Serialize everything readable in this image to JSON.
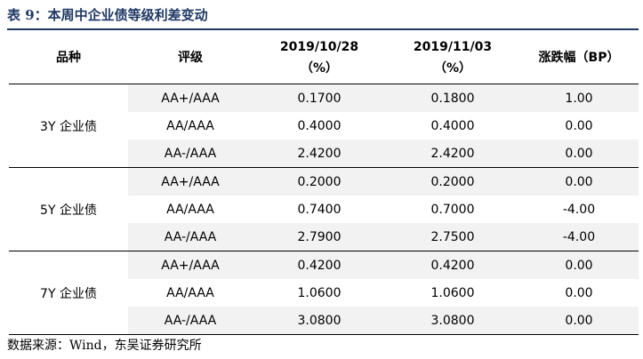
{
  "title": "表 9：本周中企业债等级利差变动",
  "table": {
    "headers": [
      {
        "line1": "品种",
        "line2": ""
      },
      {
        "line1": "评级",
        "line2": ""
      },
      {
        "line1": "2019/10/28",
        "line2": "（%）"
      },
      {
        "line1": "2019/11/03",
        "line2": "（%）"
      },
      {
        "line1": "涨跌幅（BP）",
        "line2": ""
      }
    ],
    "groups": [
      {
        "label": "3Y 企业债",
        "rows": [
          {
            "rating": "AA+/AAA",
            "v1": "0.1700",
            "v2": "0.1800",
            "change": "1.00"
          },
          {
            "rating": "AA/AAA",
            "v1": "0.4000",
            "v2": "0.4000",
            "change": "0.00"
          },
          {
            "rating": "AA-/AAA",
            "v1": "2.4200",
            "v2": "2.4200",
            "change": "0.00"
          }
        ]
      },
      {
        "label": "5Y 企业债",
        "rows": [
          {
            "rating": "AA+/AAA",
            "v1": "0.2000",
            "v2": "0.2000",
            "change": "0.00"
          },
          {
            "rating": "AA/AAA",
            "v1": "0.7400",
            "v2": "0.7000",
            "change": "-4.00"
          },
          {
            "rating": "AA-/AAA",
            "v1": "2.7900",
            "v2": "2.7500",
            "change": "-4.00"
          }
        ]
      },
      {
        "label": "7Y 企业债",
        "rows": [
          {
            "rating": "AA+/AAA",
            "v1": "0.4200",
            "v2": "0.4200",
            "change": "0.00"
          },
          {
            "rating": "AA/AAA",
            "v1": "1.0600",
            "v2": "1.0600",
            "change": "0.00"
          },
          {
            "rating": "AA-/AAA",
            "v1": "3.0800",
            "v2": "3.0800",
            "change": "0.00"
          }
        ]
      }
    ]
  },
  "source": "数据来源：Wind，东吴证券研究所"
}
